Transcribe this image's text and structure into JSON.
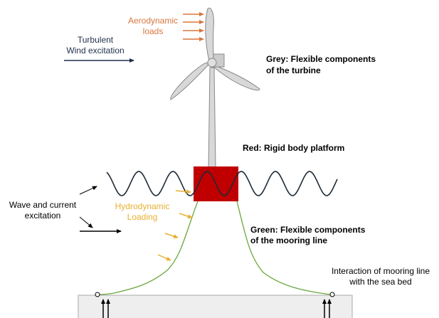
{
  "labels": {
    "aerodynamic": [
      "Aerodynamic",
      "loads"
    ],
    "wind": [
      "Turbulent",
      "Wind excitation"
    ],
    "grey": [
      "Grey: Flexible components",
      "of the turbine"
    ],
    "red": [
      "Red: Rigid body platform"
    ],
    "wave": [
      "Wave and current",
      "excitation"
    ],
    "hydro": [
      "Hydrodynamic",
      "Loading"
    ],
    "green": [
      "Green: Flexible components",
      "of the mooring line"
    ],
    "seabed": [
      "Interaction of mooring line",
      "with the sea bed"
    ]
  }
}
